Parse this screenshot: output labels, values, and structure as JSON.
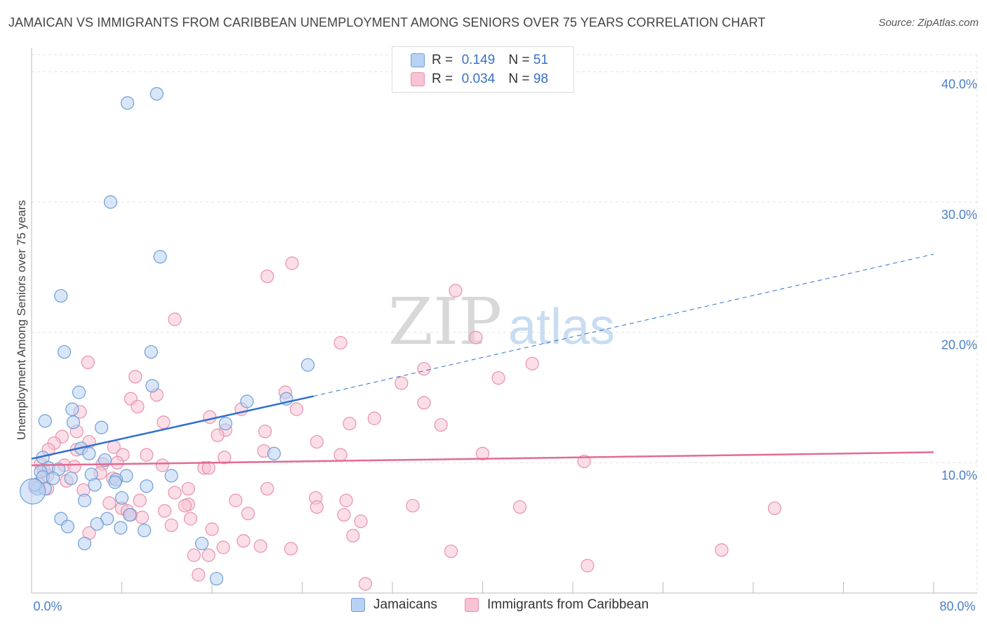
{
  "title": "JAMAICAN VS IMMIGRANTS FROM CARIBBEAN UNEMPLOYMENT AMONG SENIORS OVER 75 YEARS CORRELATION CHART",
  "source": "Source: ZipAtlas.com",
  "watermark": {
    "zip": "ZIP",
    "atlas": "atlas"
  },
  "legend": {
    "r_label": "R =",
    "n_label": "N =",
    "rows": [
      {
        "r": "0.149",
        "n": "51"
      },
      {
        "r": "0.034",
        "n": "98"
      }
    ]
  },
  "bottom_legend": [
    "Jamaicans",
    "Immigrants from Caribbean"
  ],
  "colors": {
    "jamaicans_fill": "#b9d2f3",
    "jamaicans_stroke": "#6f9fd8",
    "jamaicans_line": "#2f6fcf",
    "caribbean_fill": "#f8c3d4",
    "caribbean_stroke": "#e892ad",
    "caribbean_line": "#e36b94",
    "tick_color": "#4a7fc8"
  },
  "chart_data": {
    "type": "scatter",
    "title": "JAMAICAN VS IMMIGRANTS FROM CARIBBEAN UNEMPLOYMENT AMONG SENIORS OVER 75 YEARS CORRELATION CHART",
    "xlabel": "",
    "ylabel": "Unemployment Among Seniors over 75 years",
    "xlim": [
      0,
      80
    ],
    "ylim": [
      0,
      42
    ],
    "x_tick_labels": [
      "0.0%",
      "80.0%"
    ],
    "y_ticks": [
      10,
      20,
      30,
      40
    ],
    "y_tick_labels": [
      "10.0%",
      "20.0%",
      "30.0%",
      "40.0%"
    ],
    "grid": true,
    "series": [
      {
        "name": "Jamaicans",
        "R": 0.149,
        "N": 51,
        "trend": {
          "x0": 0,
          "y0": 10.3,
          "x1": 25,
          "y1": 15.1,
          "dashed_to_x": 80,
          "dashed_to_y": 26.0
        },
        "points": [
          [
            8.5,
            37.6
          ],
          [
            11.1,
            38.3
          ],
          [
            7.0,
            30.0
          ],
          [
            11.4,
            25.8
          ],
          [
            2.6,
            22.8
          ],
          [
            2.9,
            18.5
          ],
          [
            10.6,
            18.5
          ],
          [
            24.5,
            17.5
          ],
          [
            10.7,
            15.9
          ],
          [
            4.2,
            15.4
          ],
          [
            19.1,
            14.7
          ],
          [
            22.6,
            14.9
          ],
          [
            3.6,
            14.1
          ],
          [
            1.2,
            13.2
          ],
          [
            17.2,
            13.0
          ],
          [
            3.7,
            13.1
          ],
          [
            6.2,
            12.7
          ],
          [
            4.4,
            11.1
          ],
          [
            1.0,
            10.4
          ],
          [
            5.1,
            10.7
          ],
          [
            6.5,
            10.2
          ],
          [
            21.5,
            10.7
          ],
          [
            1.5,
            9.6
          ],
          [
            2.4,
            9.5
          ],
          [
            0.8,
            9.3
          ],
          [
            5.3,
            9.1
          ],
          [
            8.4,
            9.0
          ],
          [
            12.4,
            9.0
          ],
          [
            1.0,
            8.9
          ],
          [
            1.9,
            8.8
          ],
          [
            3.5,
            8.8
          ],
          [
            7.5,
            8.7
          ],
          [
            5.6,
            8.3
          ],
          [
            7.4,
            8.5
          ],
          [
            10.2,
            8.2
          ],
          [
            0.5,
            8.0
          ],
          [
            1.2,
            8.0
          ],
          [
            0.3,
            8.3
          ],
          [
            8.0,
            7.3
          ],
          [
            4.7,
            7.1
          ],
          [
            2.6,
            5.7
          ],
          [
            6.7,
            5.7
          ],
          [
            3.2,
            5.1
          ],
          [
            5.8,
            5.3
          ],
          [
            7.9,
            5.0
          ],
          [
            10.0,
            4.8
          ],
          [
            8.7,
            6.0
          ],
          [
            4.7,
            3.8
          ],
          [
            15.1,
            3.8
          ],
          [
            16.4,
            1.1
          ],
          [
            0.1,
            7.8
          ]
        ]
      },
      {
        "name": "Immigrants from Caribbean",
        "R": 0.034,
        "N": 98,
        "trend": {
          "x0": 0,
          "y0": 9.8,
          "x1": 80,
          "y1": 10.8
        },
        "points": [
          [
            23.1,
            25.3
          ],
          [
            20.9,
            24.3
          ],
          [
            37.6,
            23.2
          ],
          [
            12.7,
            21.0
          ],
          [
            39.4,
            19.6
          ],
          [
            27.4,
            19.2
          ],
          [
            5.0,
            17.7
          ],
          [
            44.4,
            17.6
          ],
          [
            34.8,
            17.2
          ],
          [
            9.2,
            16.6
          ],
          [
            41.4,
            16.5
          ],
          [
            32.8,
            16.1
          ],
          [
            22.5,
            15.4
          ],
          [
            11.1,
            15.2
          ],
          [
            8.8,
            14.9
          ],
          [
            9.4,
            14.3
          ],
          [
            34.8,
            14.6
          ],
          [
            18.6,
            14.1
          ],
          [
            23.5,
            14.1
          ],
          [
            4.3,
            13.9
          ],
          [
            15.8,
            13.5
          ],
          [
            30.4,
            13.4
          ],
          [
            11.7,
            13.1
          ],
          [
            28.2,
            13.0
          ],
          [
            36.3,
            12.9
          ],
          [
            17.2,
            12.5
          ],
          [
            20.7,
            12.4
          ],
          [
            4.0,
            12.4
          ],
          [
            2.7,
            12.0
          ],
          [
            16.5,
            12.1
          ],
          [
            2.0,
            11.5
          ],
          [
            5.1,
            11.6
          ],
          [
            25.3,
            11.6
          ],
          [
            7.3,
            11.2
          ],
          [
            1.5,
            11.0
          ],
          [
            4.0,
            11.0
          ],
          [
            20.6,
            10.9
          ],
          [
            8.1,
            10.6
          ],
          [
            10.2,
            10.6
          ],
          [
            27.4,
            10.6
          ],
          [
            40.0,
            10.7
          ],
          [
            17.1,
            10.4
          ],
          [
            49.0,
            10.1
          ],
          [
            0.8,
            9.9
          ],
          [
            6.3,
            9.9
          ],
          [
            11.6,
            9.8
          ],
          [
            2.9,
            9.8
          ],
          [
            15.3,
            9.6
          ],
          [
            15.7,
            9.6
          ],
          [
            1.4,
            9.0
          ],
          [
            6.1,
            9.2
          ],
          [
            3.1,
            8.6
          ],
          [
            7.2,
            8.8
          ],
          [
            0.6,
            8.4
          ],
          [
            0.3,
            8.1
          ],
          [
            1.4,
            8.0
          ],
          [
            4.6,
            7.9
          ],
          [
            13.9,
            8.0
          ],
          [
            20.9,
            8.0
          ],
          [
            12.7,
            7.7
          ],
          [
            25.2,
            7.3
          ],
          [
            6.9,
            6.9
          ],
          [
            18.1,
            7.1
          ],
          [
            27.9,
            7.1
          ],
          [
            9.6,
            7.1
          ],
          [
            13.9,
            6.8
          ],
          [
            13.6,
            6.7
          ],
          [
            25.3,
            6.6
          ],
          [
            33.8,
            6.7
          ],
          [
            43.3,
            6.6
          ],
          [
            65.9,
            6.5
          ],
          [
            8.0,
            6.5
          ],
          [
            8.5,
            6.3
          ],
          [
            11.8,
            6.3
          ],
          [
            19.2,
            6.1
          ],
          [
            27.7,
            6.0
          ],
          [
            9.8,
            5.8
          ],
          [
            14.1,
            5.7
          ],
          [
            29.2,
            5.5
          ],
          [
            12.4,
            5.2
          ],
          [
            8.8,
            6.0
          ],
          [
            5.1,
            4.6
          ],
          [
            16.0,
            4.9
          ],
          [
            18.8,
            4.0
          ],
          [
            28.5,
            4.4
          ],
          [
            17.0,
            3.5
          ],
          [
            20.3,
            3.6
          ],
          [
            23.0,
            3.4
          ],
          [
            61.2,
            3.3
          ],
          [
            37.2,
            3.2
          ],
          [
            14.4,
            2.9
          ],
          [
            15.7,
            2.9
          ],
          [
            49.3,
            2.1
          ],
          [
            14.8,
            1.4
          ],
          [
            29.6,
            0.7
          ],
          [
            1.1,
            9.4
          ],
          [
            3.8,
            9.7
          ],
          [
            7.6,
            10.0
          ]
        ]
      }
    ]
  }
}
